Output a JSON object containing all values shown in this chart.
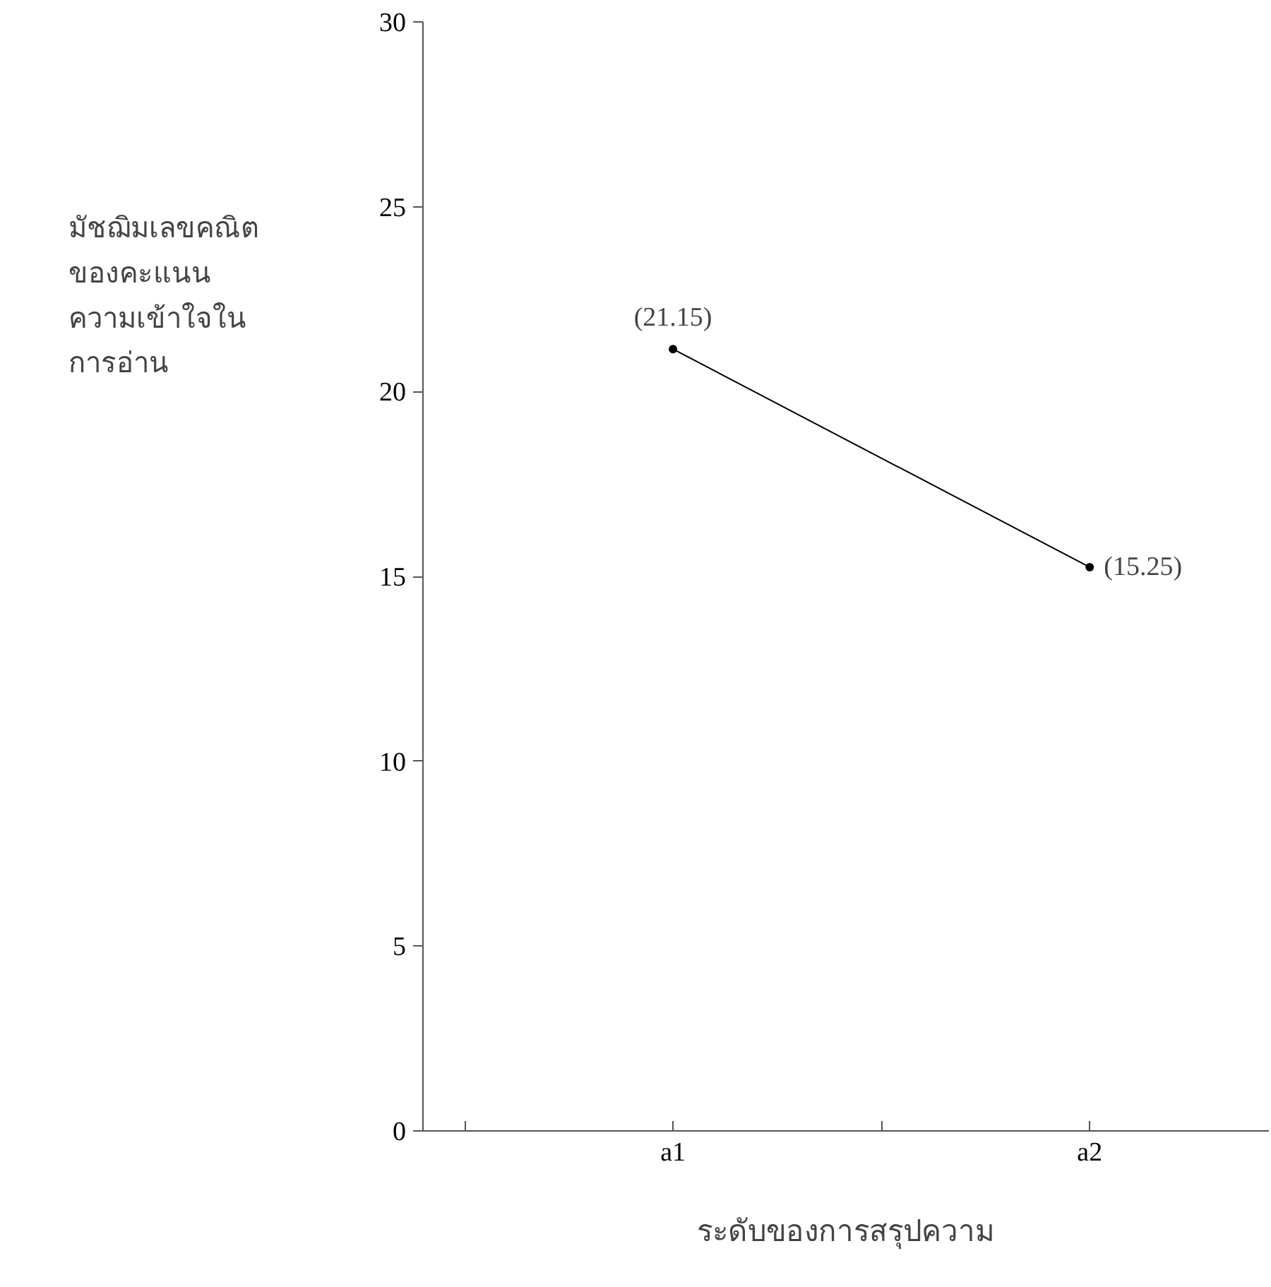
{
  "chart_data": {
    "type": "line",
    "xlabel": "ระดับของการสรุปความ",
    "ylabel": "มัชฌิมเลขคณิต\nของคะแนน\nความเข้าใจใน\nการอ่าน",
    "categories": [
      "a1",
      "a2"
    ],
    "series": [
      {
        "color": "#000000",
        "values": [
          21.15,
          15.25
        ],
        "value_labels": [
          "(21.15)",
          "(15.25)"
        ]
      }
    ],
    "ylim": [
      0,
      30
    ],
    "yticks": [
      0,
      5,
      10,
      15,
      20,
      25,
      30
    ],
    "grid": false,
    "marker": "circle",
    "line_style": "solid"
  }
}
